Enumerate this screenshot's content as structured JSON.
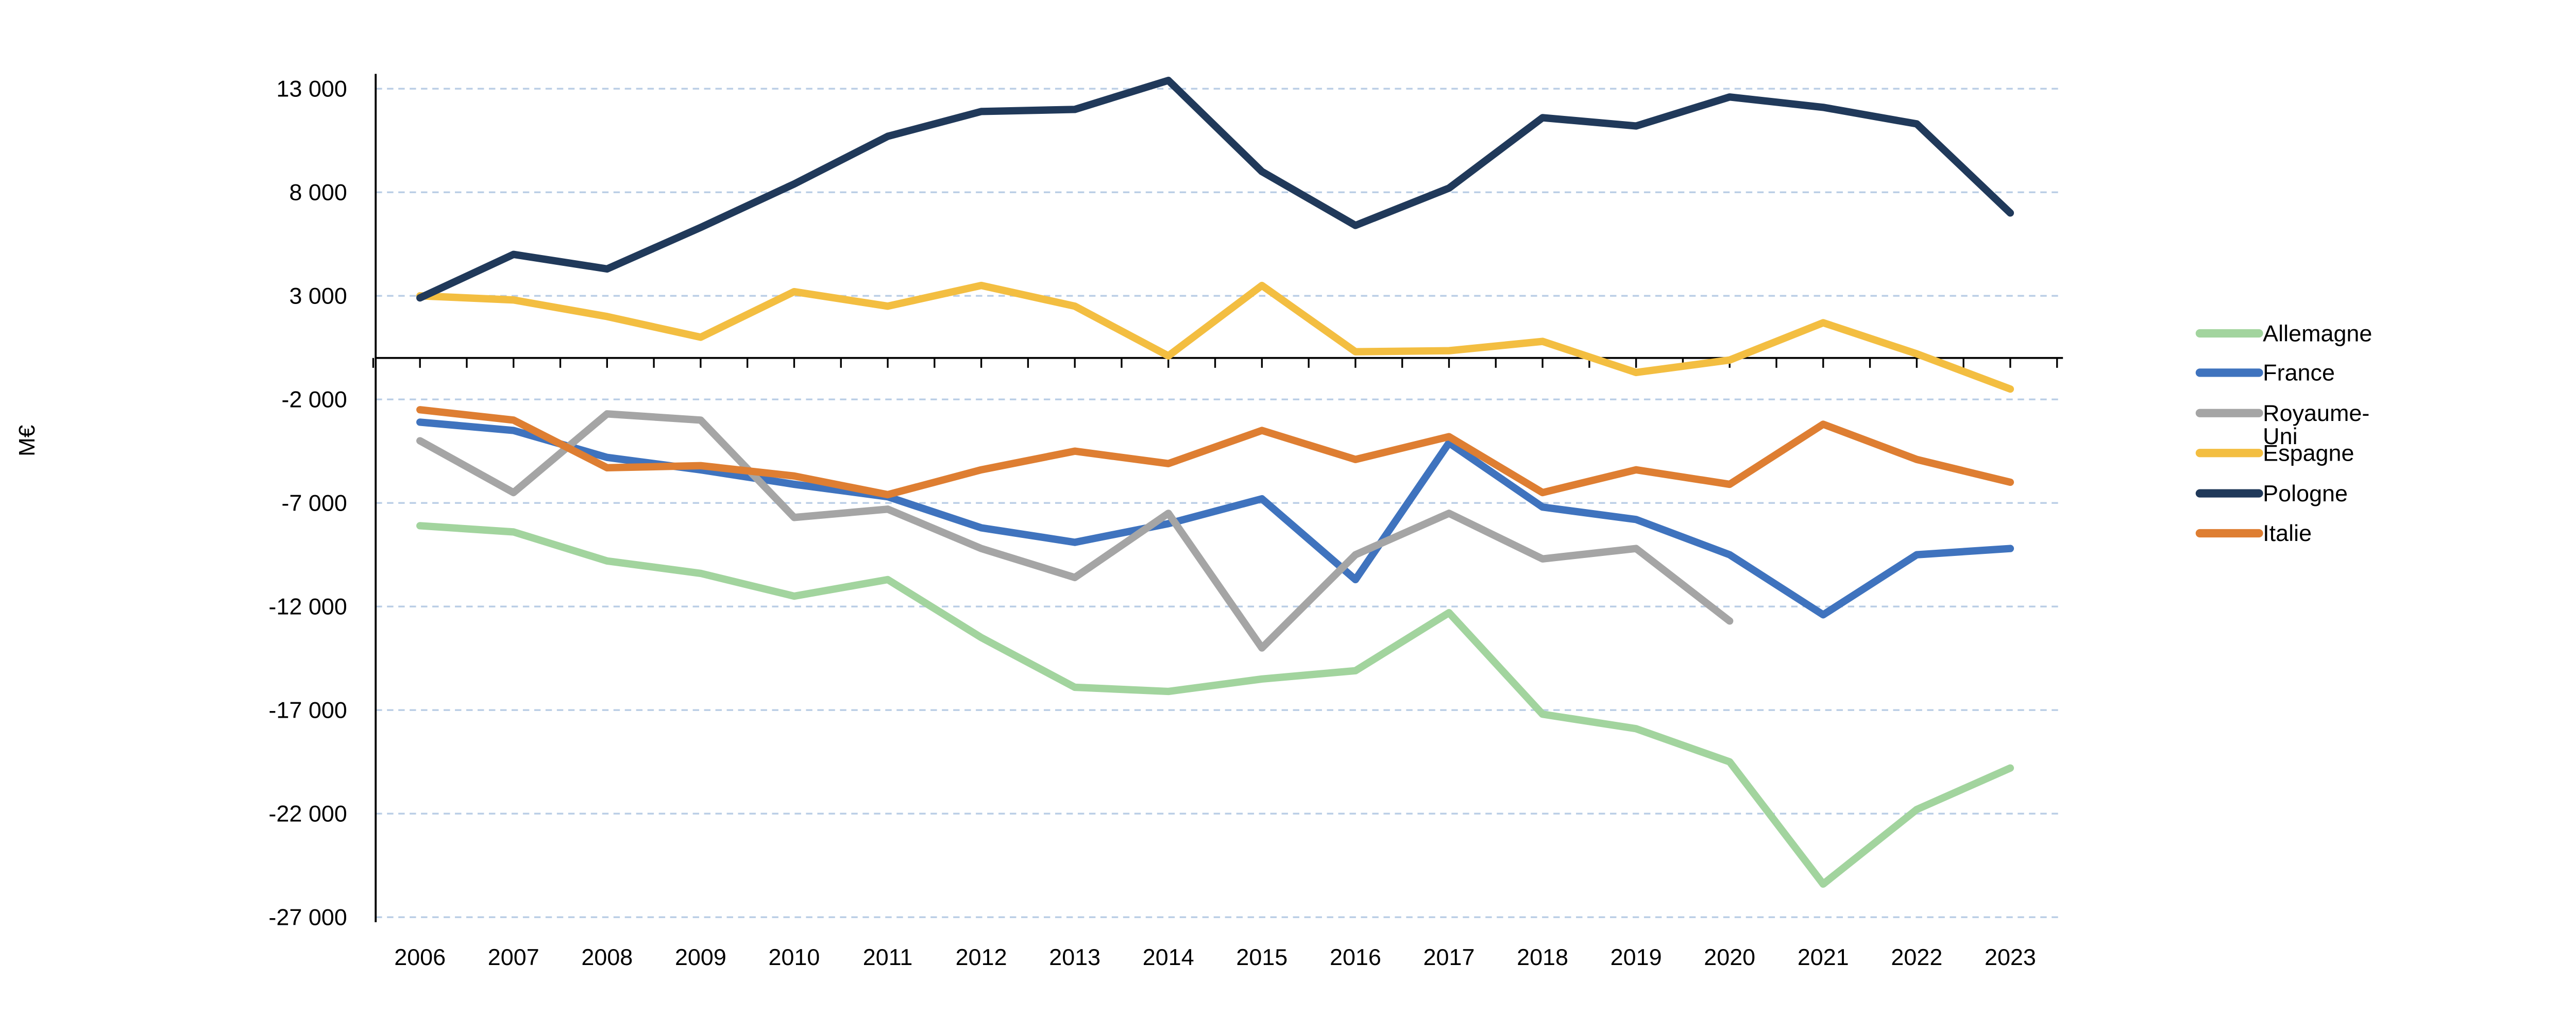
{
  "chart_data": {
    "type": "line",
    "title": "",
    "xlabel": "",
    "ylabel": "M€",
    "x": [
      2006,
      2007,
      2008,
      2009,
      2010,
      2011,
      2012,
      2013,
      2014,
      2015,
      2016,
      2017,
      2018,
      2019,
      2020,
      2021,
      2022,
      2023
    ],
    "ylim": [
      -27000,
      13000
    ],
    "ytick_step": 5000,
    "yticks": [
      13000,
      8000,
      3000,
      -2000,
      -7000,
      -12000,
      -17000,
      -22000,
      -27000
    ],
    "ytick_labels": [
      "13 000",
      "8 000",
      "3 000",
      "-2 000",
      "-7 000",
      "-12 000",
      "-17 000",
      "-22 000",
      "-27 000"
    ],
    "grid": true,
    "gridline_color": "#B9CDE5",
    "axis_color": "#000000",
    "legend_position": "right",
    "series": [
      {
        "name": "Allemagne",
        "color": "#A2D49E",
        "values": [
          -8100,
          -8400,
          -9800,
          -10400,
          -11500,
          -10700,
          -13500,
          -15900,
          -16100,
          -15500,
          -15100,
          -12300,
          -17200,
          -17900,
          -19500,
          -25400,
          -21800,
          -19800
        ]
      },
      {
        "name": "France",
        "color": "#3F73BE",
        "values": [
          -3100,
          -3500,
          -4800,
          -5400,
          -6100,
          -6700,
          -8200,
          -8900,
          -8000,
          -6800,
          -10700,
          -4100,
          -7200,
          -7800,
          -9500,
          -12400,
          -9500,
          -9200
        ]
      },
      {
        "name": "Royaume-Uni",
        "color": "#A5A5A5",
        "values": [
          -4000,
          -6500,
          -2700,
          -3000,
          -7700,
          -7300,
          -9200,
          -10600,
          -7500,
          -14000,
          -9500,
          -7500,
          -9700,
          -9200,
          -12700,
          null,
          null,
          null
        ]
      },
      {
        "name": "Espagne",
        "color": "#F3BE41",
        "values": [
          3000,
          2800,
          2000,
          1000,
          3200,
          2500,
          3500,
          2500,
          100,
          3500,
          300,
          350,
          800,
          -700,
          -100,
          1700,
          200,
          -1500
        ]
      },
      {
        "name": "Pologne",
        "color": "#20395A",
        "values": [
          2900,
          5000,
          4300,
          6300,
          8400,
          10700,
          11900,
          12000,
          13400,
          9000,
          6400,
          8200,
          11600,
          11200,
          12600,
          12100,
          11300,
          7000
        ]
      },
      {
        "name": "Italie",
        "color": "#DE7E32",
        "values": [
          -2500,
          -3000,
          -5300,
          -5200,
          -5700,
          -6600,
          -5400,
          -4500,
          -5100,
          -3500,
          -4900,
          -3800,
          -6500,
          -5400,
          -6100,
          -3200,
          -4900,
          -6000
        ]
      }
    ]
  },
  "legend": {
    "items": [
      {
        "series": "Allemagne",
        "lines": [
          "Allemagne"
        ]
      },
      {
        "series": "France",
        "lines": [
          "France"
        ]
      },
      {
        "series": "Royaume-Uni",
        "lines": [
          "Royaume-",
          "Uni"
        ]
      },
      {
        "series": "Espagne",
        "lines": [
          "Espagne"
        ]
      },
      {
        "series": "Pologne",
        "lines": [
          "Pologne"
        ]
      },
      {
        "series": "Italie",
        "lines": [
          "Italie"
        ]
      }
    ]
  },
  "axis": {
    "y_title": "M€"
  }
}
